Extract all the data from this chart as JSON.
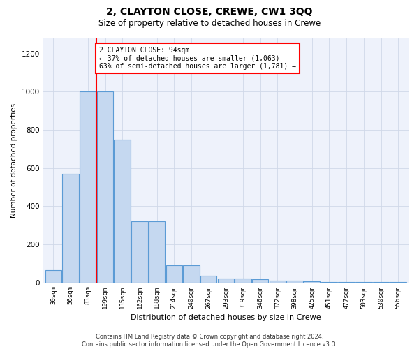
{
  "title": "2, CLAYTON CLOSE, CREWE, CW1 3QQ",
  "subtitle": "Size of property relative to detached houses in Crewe",
  "xlabel": "Distribution of detached houses by size in Crewe",
  "ylabel": "Number of detached properties",
  "categories": [
    "30sqm",
    "56sqm",
    "83sqm",
    "109sqm",
    "135sqm",
    "162sqm",
    "188sqm",
    "214sqm",
    "240sqm",
    "267sqm",
    "293sqm",
    "319sqm",
    "346sqm",
    "372sqm",
    "398sqm",
    "425sqm",
    "451sqm",
    "477sqm",
    "503sqm",
    "530sqm",
    "556sqm"
  ],
  "values": [
    65,
    570,
    1000,
    1000,
    750,
    320,
    320,
    90,
    90,
    35,
    20,
    20,
    15,
    10,
    8,
    5,
    3,
    2,
    1,
    1,
    1
  ],
  "bar_color": "#c5d8f0",
  "bar_edge_color": "#5b9bd5",
  "property_line_bin": 2,
  "annotation_text": "2 CLAYTON CLOSE: 94sqm\n← 37% of detached houses are smaller (1,063)\n63% of semi-detached houses are larger (1,781) →",
  "ylim": [
    0,
    1280
  ],
  "yticks": [
    0,
    200,
    400,
    600,
    800,
    1000,
    1200
  ],
  "footer": "Contains HM Land Registry data © Crown copyright and database right 2024.\nContains public sector information licensed under the Open Government Licence v3.0.",
  "grid_color": "#d0d8e8",
  "background_color": "#eef2fb"
}
